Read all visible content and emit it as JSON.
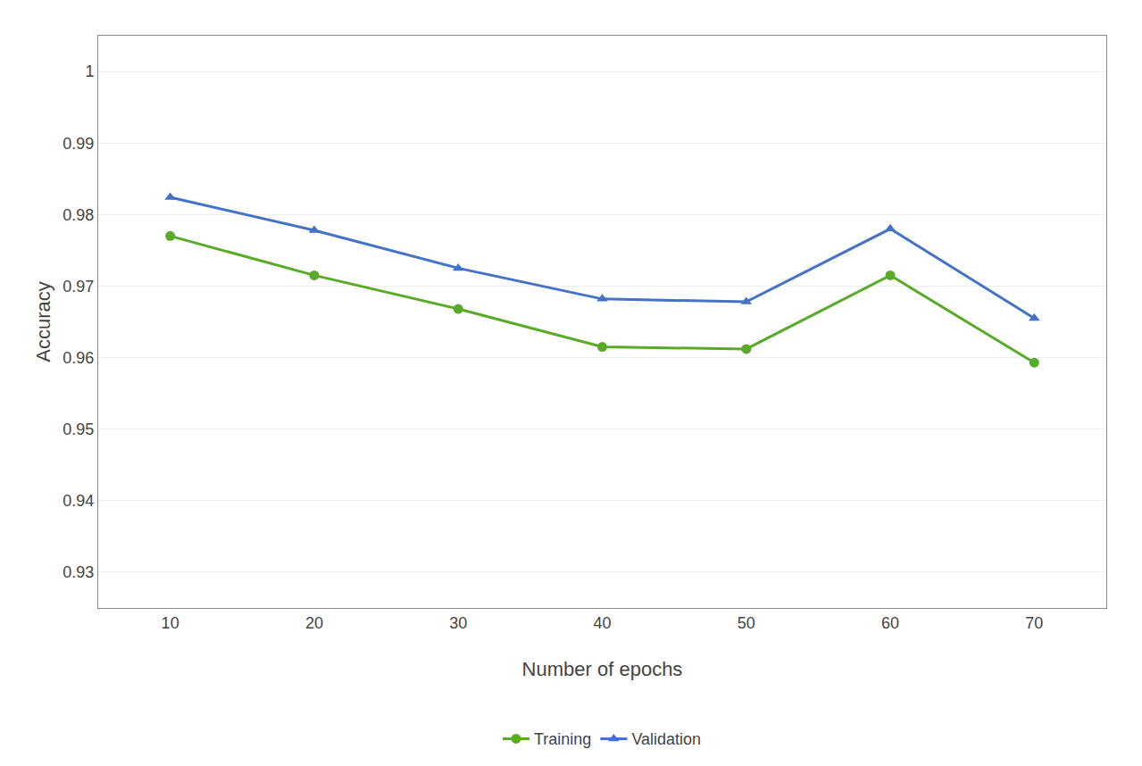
{
  "chart_data": {
    "type": "line",
    "x": [
      10,
      20,
      30,
      40,
      50,
      60,
      70
    ],
    "series": [
      {
        "name": "Training",
        "color": "#5aaa2a",
        "marker": "circle",
        "values": [
          0.977,
          0.9715,
          0.9668,
          0.9615,
          0.9612,
          0.9715,
          0.9593
        ]
      },
      {
        "name": "Validation",
        "color": "#4472c4",
        "marker": "triangle-up",
        "values": [
          0.9824,
          0.9778,
          0.9725,
          0.9682,
          0.9678,
          0.978,
          0.9655
        ]
      }
    ],
    "x_label": "Number of epochs",
    "y_label": "Accuracy",
    "xlim": [
      5,
      75
    ],
    "xticks": [
      10,
      20,
      30,
      40,
      50,
      60,
      70
    ],
    "ylim": [
      0.925,
      1.005
    ],
    "yticks": [
      1.0,
      0.99,
      0.98,
      0.97,
      0.96,
      0.95,
      0.94,
      0.93
    ],
    "grid": "y",
    "legend": "bottom"
  }
}
